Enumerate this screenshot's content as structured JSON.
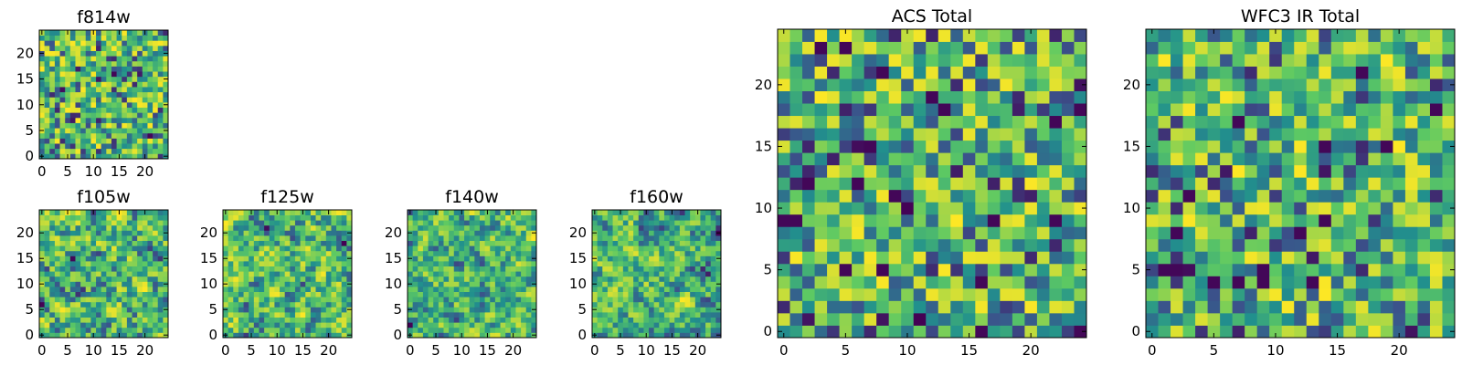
{
  "colormap": [
    "#440154",
    "#3b528b",
    "#21908d",
    "#5dc963",
    "#fde725"
  ],
  "axis_color": "#000000",
  "chart_data": [
    {
      "type": "heatmap",
      "title": "f814w",
      "size": 25,
      "xticks": [
        0,
        5,
        10,
        15,
        20
      ],
      "yticks": [
        0,
        5,
        10,
        15,
        20
      ],
      "seed": 11,
      "style": "noisy",
      "xlabel": "",
      "ylabel": ""
    },
    {
      "type": "heatmap",
      "title": "f105w",
      "size": 25,
      "xticks": [
        0,
        5,
        10,
        15,
        20
      ],
      "yticks": [
        0,
        5,
        10,
        15,
        20
      ],
      "seed": 23,
      "style": "smooth",
      "xlabel": "",
      "ylabel": ""
    },
    {
      "type": "heatmap",
      "title": "f125w",
      "size": 25,
      "xticks": [
        0,
        5,
        10,
        15,
        20
      ],
      "yticks": [
        0,
        5,
        10,
        15,
        20
      ],
      "seed": 37,
      "style": "smooth",
      "xlabel": "",
      "ylabel": ""
    },
    {
      "type": "heatmap",
      "title": "f140w",
      "size": 25,
      "xticks": [
        0,
        5,
        10,
        15,
        20
      ],
      "yticks": [
        0,
        5,
        10,
        15,
        20
      ],
      "seed": 41,
      "style": "smooth",
      "xlabel": "",
      "ylabel": ""
    },
    {
      "type": "heatmap",
      "title": "f160w",
      "size": 25,
      "xticks": [
        0,
        5,
        10,
        15,
        20
      ],
      "yticks": [
        0,
        5,
        10,
        15,
        20
      ],
      "seed": 53,
      "style": "smooth",
      "xlabel": "",
      "ylabel": ""
    },
    {
      "type": "heatmap",
      "title": "ACS Total",
      "size": 25,
      "xticks": [
        0,
        5,
        10,
        15,
        20
      ],
      "yticks": [
        0,
        5,
        10,
        15,
        20
      ],
      "seed": 67,
      "style": "blocky",
      "xlabel": "",
      "ylabel": "",
      "dark_cells": [
        [
          3,
          23
        ],
        [
          5,
          23
        ],
        [
          8,
          21
        ],
        [
          12,
          19
        ],
        [
          13,
          18
        ],
        [
          22,
          17
        ],
        [
          24,
          18
        ],
        [
          7,
          15
        ],
        [
          2,
          12
        ],
        [
          6,
          12
        ],
        [
          9,
          11
        ],
        [
          0,
          9
        ],
        [
          1,
          9
        ],
        [
          17,
          9
        ],
        [
          5,
          5
        ],
        [
          8,
          5
        ],
        [
          16,
          0
        ],
        [
          24,
          0
        ],
        [
          22,
          9
        ],
        [
          16,
          4
        ]
      ]
    },
    {
      "type": "heatmap",
      "title": "WFC3 IR Total",
      "size": 25,
      "xticks": [
        0,
        5,
        10,
        15,
        20
      ],
      "yticks": [
        0,
        5,
        10,
        15,
        20
      ],
      "seed": 79,
      "style": "blocky",
      "xlabel": "",
      "ylabel": "",
      "dark_cells": [
        [
          17,
          21
        ],
        [
          7,
          17
        ],
        [
          23,
          18
        ],
        [
          19,
          15
        ],
        [
          14,
          15
        ],
        [
          3,
          11
        ],
        [
          14,
          9
        ],
        [
          2,
          8
        ],
        [
          1,
          5
        ],
        [
          2,
          5
        ],
        [
          5,
          4
        ],
        [
          7,
          4
        ],
        [
          9,
          4
        ],
        [
          13,
          4
        ],
        [
          12,
          8
        ],
        [
          9,
          5
        ]
      ]
    }
  ]
}
